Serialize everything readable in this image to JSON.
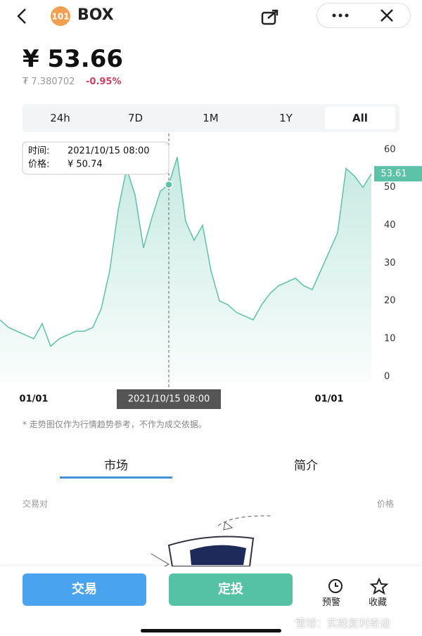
{
  "header": {
    "title": "BOX"
  },
  "price": {
    "main": "¥ 53.66",
    "sub": "₮ 7.380702",
    "change": "-0.95%"
  },
  "tabs": [
    "24h",
    "7D",
    "1M",
    "1Y",
    "All"
  ],
  "tooltip": {
    "time_label": "时间:",
    "time": "2021/10/15 08:00",
    "price_label": "价格:",
    "price": "¥ 50.74"
  },
  "chart_data": {
    "type": "line",
    "categories": [
      null,
      null,
      null,
      null,
      "01/01",
      null,
      null,
      null,
      null,
      null,
      null,
      null,
      null,
      null,
      null,
      null,
      null,
      null,
      null,
      null,
      null,
      null,
      null,
      null,
      null,
      null,
      null,
      null,
      null,
      null,
      null,
      null,
      null,
      null,
      null,
      null,
      null,
      null,
      null,
      "01/01",
      null,
      null,
      null,
      null,
      null
    ],
    "series": [
      {
        "color": "#5cc2a8",
        "values": [
          15,
          13,
          12,
          11,
          10,
          14,
          8,
          10,
          11,
          12,
          12,
          13,
          18,
          28,
          44,
          55,
          48,
          34,
          42,
          49,
          50.74,
          58,
          41,
          36,
          40,
          28,
          20,
          19,
          17,
          16,
          15,
          19,
          22,
          24,
          25,
          26,
          24,
          23,
          28,
          33,
          38,
          55,
          53,
          50,
          53.61
        ]
      }
    ],
    "ylim": [
      -1.5,
      63.5
    ],
    "yticks": [
      0,
      10,
      20,
      30,
      40,
      50,
      60
    ]
  },
  "disclaimer": "* 走势图仅作为行情趋势参考，不作为成交依据。",
  "sections": [
    "市场",
    "简介"
  ],
  "list_header": {
    "left": "交易对",
    "right": "价格"
  },
  "actions": {
    "trade": "交易",
    "invest": "定投",
    "alert": "预警",
    "favorite": "收藏"
  },
  "watermark": "雪球：实践复利奇迹"
}
